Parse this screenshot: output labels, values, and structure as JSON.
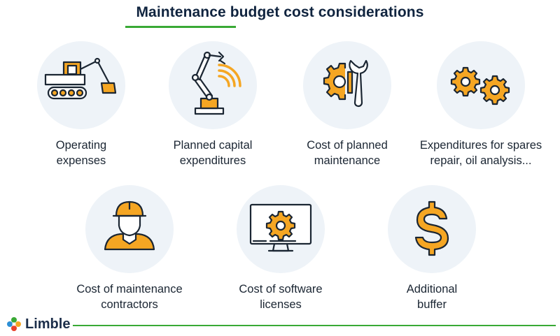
{
  "title": "Maintenance budget cost considerations",
  "colors": {
    "accent": "#39a935",
    "icon_fill": "#f5a623",
    "icon_stroke": "#1b2633",
    "circle_bg": "#eef3f8"
  },
  "items": [
    {
      "icon": "excavator-icon",
      "line1": "Operating",
      "line2": "expenses"
    },
    {
      "icon": "robotic-arm-icon",
      "line1": "Planned capital",
      "line2": "expenditures"
    },
    {
      "icon": "gear-wrench-icon",
      "line1": "Cost of planned",
      "line2": "maintenance"
    },
    {
      "icon": "gears-icon",
      "line1": "Expenditures for spares",
      "line2": "repair, oil analysis..."
    },
    {
      "icon": "worker-hardhat-icon",
      "line1": "Cost of maintenance",
      "line2": "contractors"
    },
    {
      "icon": "monitor-gear-icon",
      "line1": "Cost of software",
      "line2": "licenses"
    },
    {
      "icon": "dollar-icon",
      "line1": "Additional",
      "line2": "buffer"
    }
  ],
  "footer": {
    "brand": "Limble",
    "logo_icon": "limble-logo-icon"
  }
}
